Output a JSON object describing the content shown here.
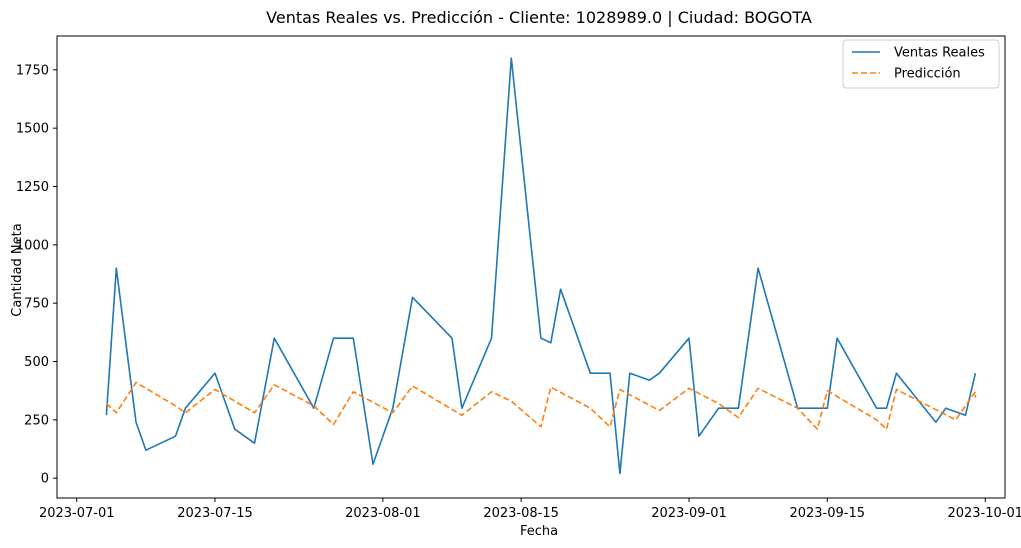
{
  "chart_data": {
    "type": "line",
    "title": "Ventas Reales vs. Predicción - Cliente: 1028989.0 | Ciudad: BOGOTA",
    "xlabel": "Fecha",
    "ylabel": "Cantidad Neta",
    "xlim": [
      "2023-06-29",
      "2023-10-03"
    ],
    "ylim": [
      -85,
      1895
    ],
    "x_ticks": [
      "2023-07-01",
      "2023-07-15",
      "2023-08-01",
      "2023-08-15",
      "2023-09-01",
      "2023-09-15",
      "2023-10-01"
    ],
    "y_ticks": [
      0,
      250,
      500,
      750,
      1000,
      1250,
      1500,
      1750
    ],
    "grid": false,
    "legend_position": "top-right",
    "series": [
      {
        "name": "Ventas Reales",
        "color": "#1f77b4",
        "style": "solid",
        "points": [
          [
            "2023-07-04",
            270
          ],
          [
            "2023-07-05",
            900
          ],
          [
            "2023-07-07",
            240
          ],
          [
            "2023-07-08",
            120
          ],
          [
            "2023-07-11",
            180
          ],
          [
            "2023-07-12",
            300
          ],
          [
            "2023-07-15",
            450
          ],
          [
            "2023-07-17",
            210
          ],
          [
            "2023-07-19",
            150
          ],
          [
            "2023-07-21",
            600
          ],
          [
            "2023-07-25",
            300
          ],
          [
            "2023-07-27",
            600
          ],
          [
            "2023-07-29",
            600
          ],
          [
            "2023-07-31",
            60
          ],
          [
            "2023-08-02",
            300
          ],
          [
            "2023-08-04",
            775
          ],
          [
            "2023-08-08",
            600
          ],
          [
            "2023-08-09",
            300
          ],
          [
            "2023-08-12",
            600
          ],
          [
            "2023-08-14",
            1800
          ],
          [
            "2023-08-17",
            600
          ],
          [
            "2023-08-18",
            580
          ],
          [
            "2023-08-19",
            810
          ],
          [
            "2023-08-22",
            450
          ],
          [
            "2023-08-24",
            450
          ],
          [
            "2023-08-25",
            20
          ],
          [
            "2023-08-26",
            450
          ],
          [
            "2023-08-28",
            420
          ],
          [
            "2023-08-29",
            450
          ],
          [
            "2023-09-01",
            600
          ],
          [
            "2023-09-02",
            180
          ],
          [
            "2023-09-04",
            300
          ],
          [
            "2023-09-06",
            300
          ],
          [
            "2023-09-08",
            900
          ],
          [
            "2023-09-12",
            300
          ],
          [
            "2023-09-15",
            300
          ],
          [
            "2023-09-16",
            600
          ],
          [
            "2023-09-20",
            300
          ],
          [
            "2023-09-21",
            300
          ],
          [
            "2023-09-22",
            450
          ],
          [
            "2023-09-26",
            240
          ],
          [
            "2023-09-27",
            300
          ],
          [
            "2023-09-29",
            270
          ],
          [
            "2023-09-30",
            450
          ]
        ]
      },
      {
        "name": "Predicción",
        "color": "#ff7f0e",
        "style": "dashed",
        "points": [
          [
            "2023-07-04",
            320
          ],
          [
            "2023-07-05",
            280
          ],
          [
            "2023-07-07",
            410
          ],
          [
            "2023-07-11",
            310
          ],
          [
            "2023-07-12",
            280
          ],
          [
            "2023-07-15",
            380
          ],
          [
            "2023-07-19",
            280
          ],
          [
            "2023-07-21",
            400
          ],
          [
            "2023-07-25",
            310
          ],
          [
            "2023-07-27",
            230
          ],
          [
            "2023-07-29",
            370
          ],
          [
            "2023-08-02",
            280
          ],
          [
            "2023-08-04",
            395
          ],
          [
            "2023-08-09",
            270
          ],
          [
            "2023-08-12",
            370
          ],
          [
            "2023-08-14",
            330
          ],
          [
            "2023-08-17",
            220
          ],
          [
            "2023-08-18",
            390
          ],
          [
            "2023-08-22",
            300
          ],
          [
            "2023-08-24",
            220
          ],
          [
            "2023-08-25",
            380
          ],
          [
            "2023-08-29",
            290
          ],
          [
            "2023-09-01",
            385
          ],
          [
            "2023-09-04",
            320
          ],
          [
            "2023-09-06",
            260
          ],
          [
            "2023-09-08",
            385
          ],
          [
            "2023-09-12",
            300
          ],
          [
            "2023-09-14",
            210
          ],
          [
            "2023-09-15",
            375
          ],
          [
            "2023-09-20",
            250
          ],
          [
            "2023-09-21",
            210
          ],
          [
            "2023-09-22",
            380
          ],
          [
            "2023-09-28",
            250
          ],
          [
            "2023-09-30",
            370
          ],
          [
            "2023-09-30",
            345
          ]
        ]
      }
    ]
  }
}
